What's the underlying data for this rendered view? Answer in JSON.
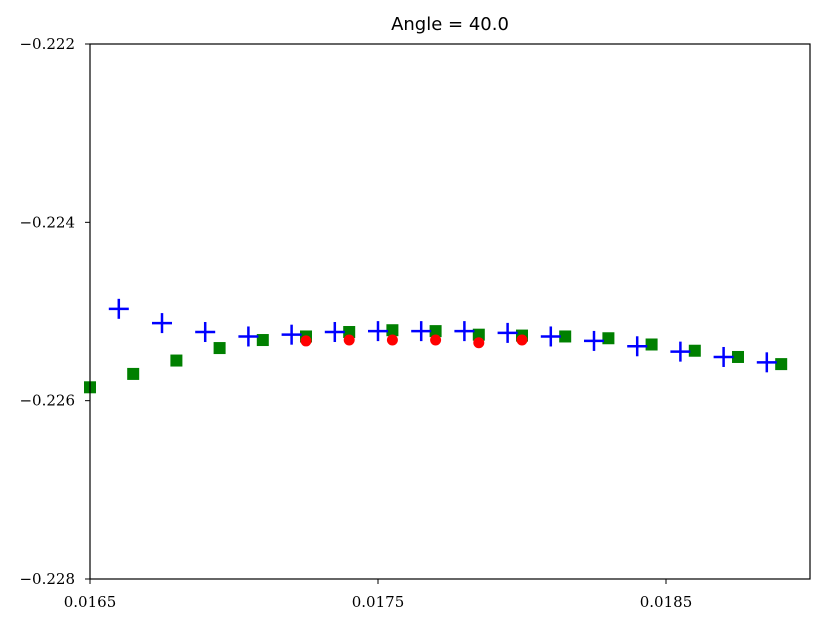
{
  "chart_data": {
    "type": "scatter",
    "title": "Angle = 40.0",
    "xlabel": "",
    "ylabel": "",
    "xlim": [
      0.0165,
      0.019
    ],
    "ylim": [
      -0.228,
      -0.222
    ],
    "xticks": [
      0.0165,
      0.0175,
      0.0185
    ],
    "xtick_labels": [
      "0.0165",
      "0.0175",
      "0.0185"
    ],
    "yticks": [
      -0.228,
      -0.226,
      -0.224,
      -0.222
    ],
    "ytick_labels": [
      "−0.228",
      "−0.226",
      "−0.224",
      "−0.222"
    ],
    "grid": false,
    "legend": "none",
    "series": [
      {
        "marker": "square",
        "color": "#008000",
        "x": [
          0.0165,
          0.01665,
          0.0168,
          0.01695,
          0.0171,
          0.01725,
          0.0174,
          0.01755,
          0.0177,
          0.01785,
          0.018,
          0.01815,
          0.0183,
          0.01845,
          0.0186,
          0.01875,
          0.0189
        ],
        "y": [
          -0.22585,
          -0.2257,
          -0.22555,
          -0.22541,
          -0.22532,
          -0.22528,
          -0.22523,
          -0.22521,
          -0.22522,
          -0.22526,
          -0.22527,
          -0.22528,
          -0.2253,
          -0.22537,
          -0.22544,
          -0.22551,
          -0.22559
        ]
      },
      {
        "marker": "circle",
        "color": "#ff0000",
        "x": [
          0.01725,
          0.0174,
          0.01755,
          0.0177,
          0.01785,
          0.018
        ],
        "y": [
          -0.22533,
          -0.22532,
          -0.22532,
          -0.22532,
          -0.22535,
          -0.22532
        ]
      },
      {
        "marker": "plus",
        "color": "#0000ff",
        "x": [
          0.0166,
          0.01675,
          0.0169,
          0.01705,
          0.0172,
          0.01735,
          0.0175,
          0.01765,
          0.0178,
          0.01795,
          0.0181,
          0.01825,
          0.0184,
          0.01855,
          0.0187,
          0.01885
        ],
        "y": [
          -0.22497,
          -0.22513,
          -0.22523,
          -0.22528,
          -0.22526,
          -0.22523,
          -0.22522,
          -0.22522,
          -0.22522,
          -0.22524,
          -0.22528,
          -0.22533,
          -0.22539,
          -0.22545,
          -0.22551,
          -0.22557
        ]
      }
    ]
  }
}
